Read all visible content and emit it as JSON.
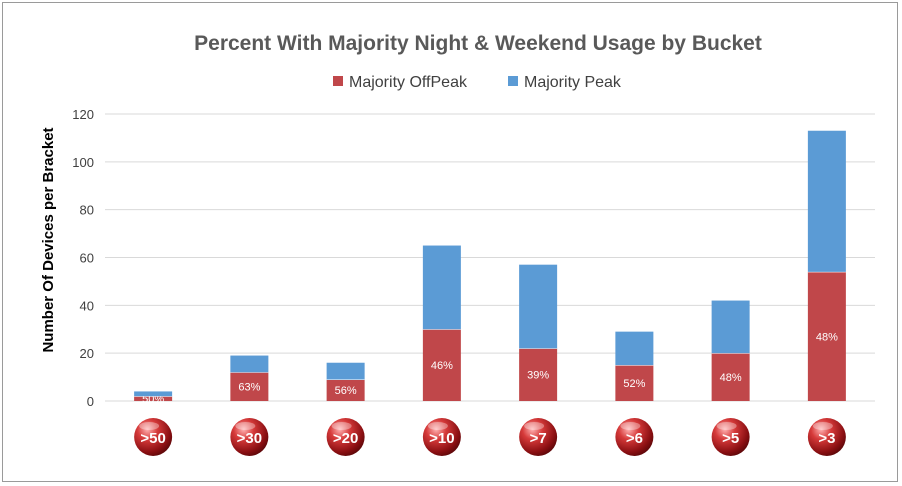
{
  "chart_data": {
    "type": "bar",
    "stacked": true,
    "title": "Percent With Majority Night & Weekend Usage by Bucket",
    "ylabel": "Number Of Devices per Bracket",
    "xlabel": "",
    "ylim": [
      0,
      120
    ],
    "yticks": [
      0,
      20,
      40,
      60,
      80,
      100,
      120
    ],
    "grid": true,
    "legend_position": "top",
    "categories": [
      ">50",
      ">30",
      ">20",
      ">10",
      ">7",
      ">6",
      ">5",
      ">3"
    ],
    "series": [
      {
        "name": "Majority OffPeak",
        "color": "#c0474a",
        "values": [
          2,
          12,
          9,
          30,
          22,
          15,
          20,
          54
        ],
        "labels": [
          "50%",
          "63%",
          "56%",
          "46%",
          "39%",
          "52%",
          "48%",
          "48%"
        ]
      },
      {
        "name": "Majority Peak",
        "color": "#5b9bd5",
        "values": [
          2,
          7,
          7,
          35,
          35,
          14,
          22,
          59
        ]
      }
    ],
    "category_marker_color": "#c0282b"
  }
}
